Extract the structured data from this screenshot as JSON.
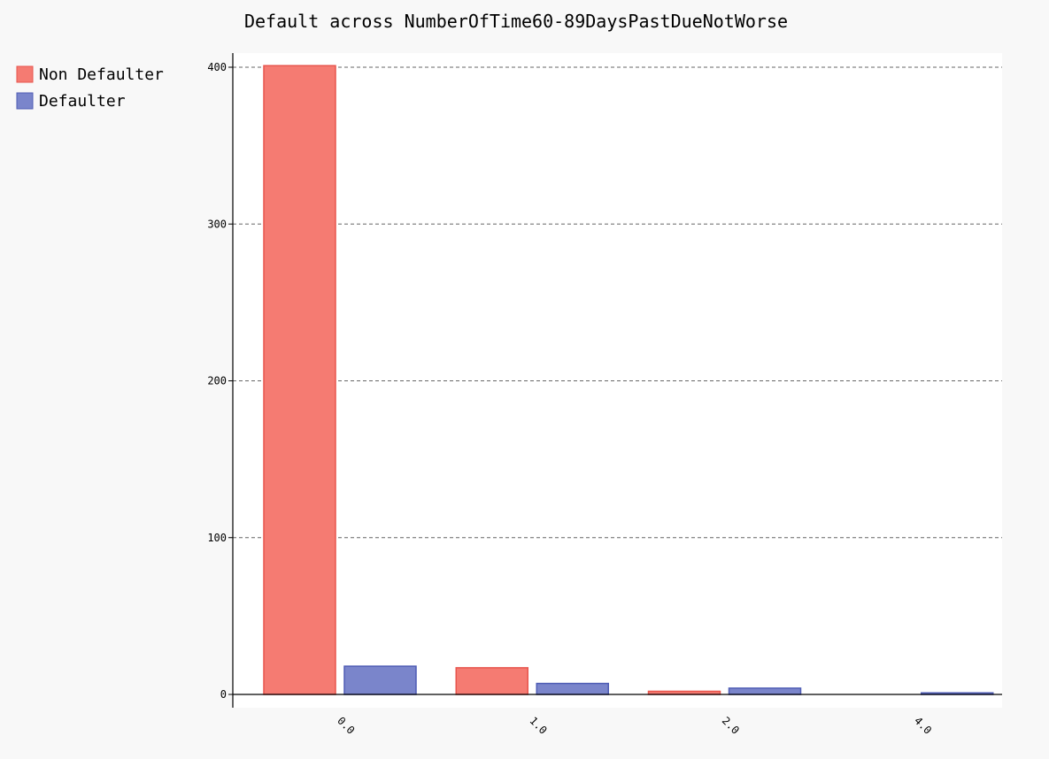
{
  "chart_data": {
    "type": "bar",
    "title": "Default across NumberOfTime60-89DaysPastDueNotWorse",
    "xlabel": "",
    "ylabel": "",
    "categories": [
      "0.0",
      "1.0",
      "2.0",
      "4.0"
    ],
    "series": [
      {
        "name": "Non Defaulter",
        "values": [
          401,
          17,
          2,
          0
        ],
        "color": "#f57b72"
      },
      {
        "name": "Defaulter",
        "values": [
          18,
          7,
          4,
          1
        ],
        "color": "#7a85cb"
      }
    ],
    "ylim": [
      0,
      400
    ],
    "yticks": [
      0,
      100,
      200,
      300,
      400
    ],
    "grid": true,
    "legend_position": "top-left"
  },
  "colors": {
    "non_defaulter_fill": "#f57b72",
    "non_defaulter_stroke": "#e8554d",
    "defaulter_fill": "#7a85cb",
    "defaulter_stroke": "#4f5db5",
    "plot_background": "#ffffff",
    "page_background": "#f8f8f8"
  }
}
